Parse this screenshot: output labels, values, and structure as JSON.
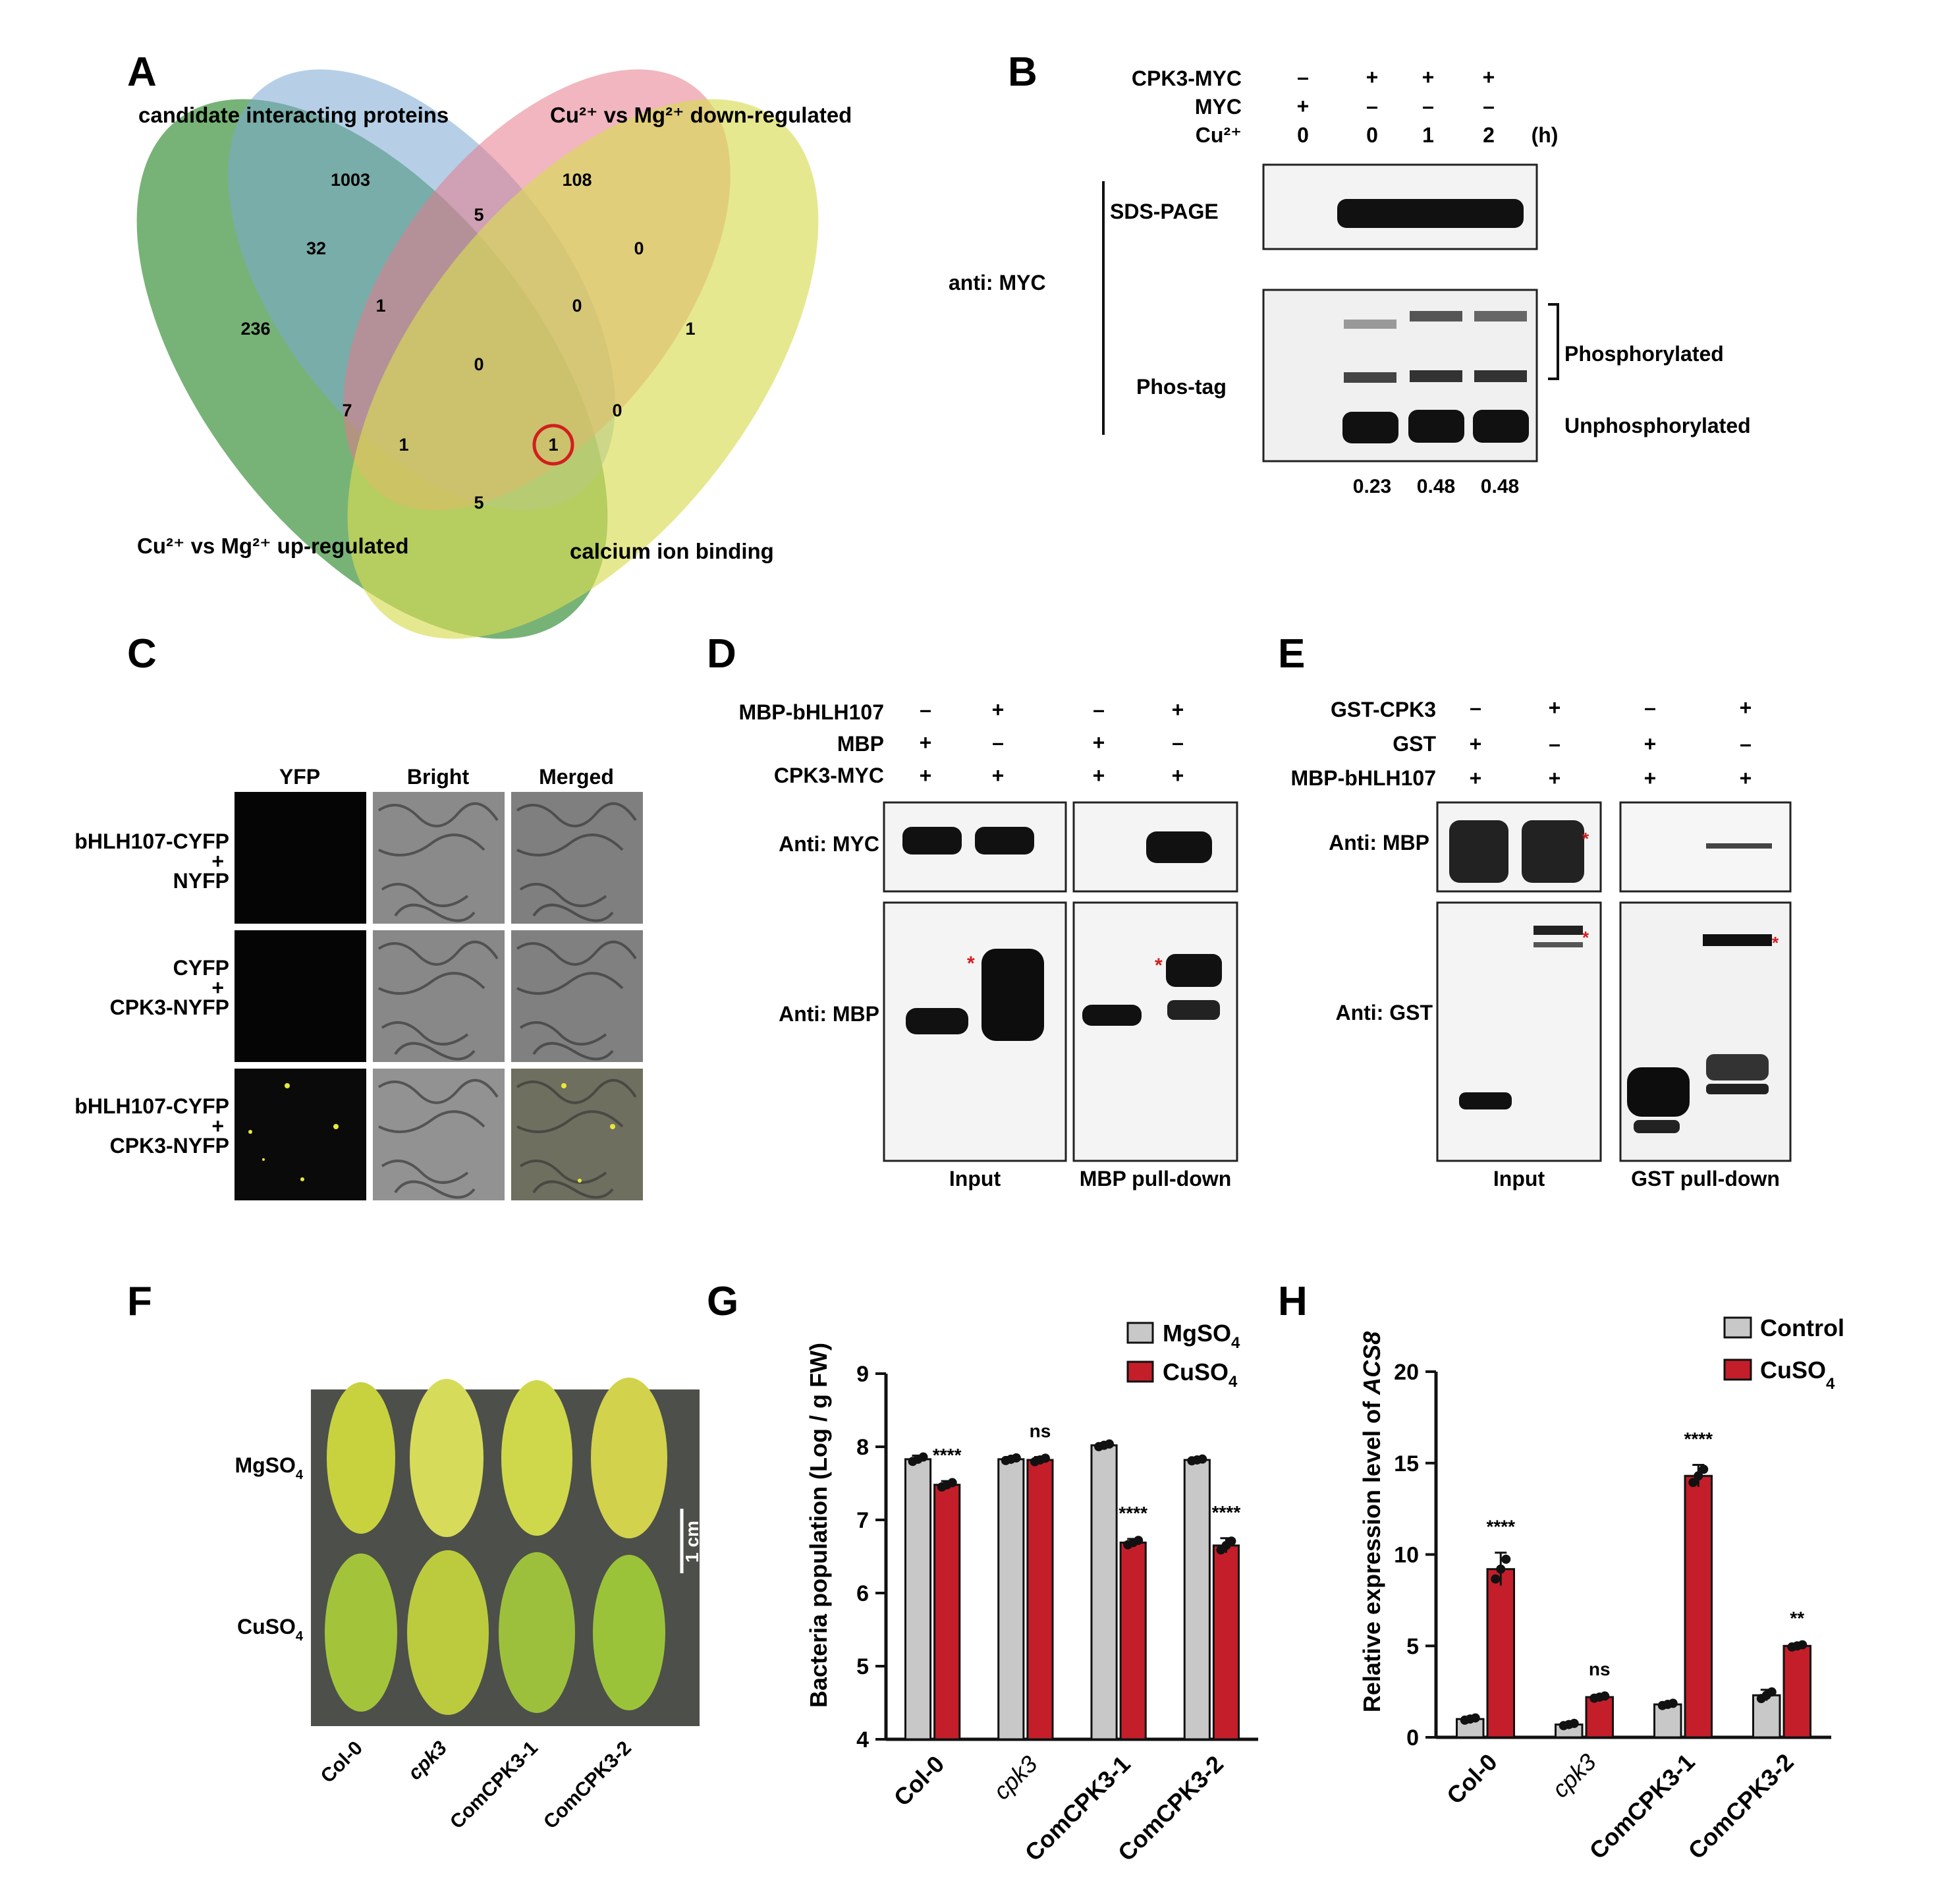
{
  "panel_letters": {
    "A": "A",
    "B": "B",
    "C": "C",
    "D": "D",
    "E": "E",
    "F": "F",
    "G": "G",
    "H": "H"
  },
  "venn": {
    "set_labels": {
      "candidate": "candidate interacting proteins",
      "down": "Cu²⁺ vs Mg²⁺ down-regulated",
      "up": "Cu²⁺ vs Mg²⁺ up-regulated",
      "calcium": "calcium ion binding"
    },
    "counts": {
      "c_only": "1003",
      "d_only": "108",
      "cd": "5",
      "cu": "32",
      "u_only": "236",
      "a_only": "1",
      "cdu": "1",
      "dca": "0",
      "da": "0",
      "cdua": "0",
      "ua": "7",
      "u_a": "1",
      "key": "1",
      "ca": "0",
      "ua_bottom": "5"
    },
    "colors": {
      "candidate": "#7aa7d4",
      "down": "#e57a8a",
      "up": "#4a9a4a",
      "calcium": "#d8dc54",
      "highlight": "#d11f1f"
    }
  },
  "panel_b": {
    "rows": [
      {
        "label": "CPK3-MYC",
        "vals": [
          "–",
          "+",
          "+",
          "+"
        ]
      },
      {
        "label": "MYC",
        "vals": [
          "+",
          "–",
          "–",
          "–"
        ]
      },
      {
        "label": "Cu²⁺",
        "vals": [
          "0",
          "0",
          "1",
          "2"
        ]
      }
    ],
    "unit": "(h)",
    "antibody": "anti: MYC",
    "sds": "SDS-PAGE",
    "phos": "Phos-tag",
    "phosphorylated": "Phosphorylated",
    "unphosphorylated": "Unphosphorylated",
    "ratios": [
      "0.23",
      "0.48",
      "0.48"
    ]
  },
  "panel_c": {
    "cols": [
      "YFP",
      "Bright",
      "Merged"
    ],
    "rows": [
      [
        "bHLH107-CYFP",
        "+",
        "NYFP"
      ],
      [
        "CYFP",
        "+",
        "CPK3-NYFP"
      ],
      [
        "bHLH107-CYFP",
        "+",
        "CPK3-NYFP"
      ]
    ]
  },
  "panel_d": {
    "rows": [
      {
        "label": "MBP-bHLH107",
        "vals": [
          "–",
          "+",
          "–",
          "+"
        ]
      },
      {
        "label": "MBP",
        "vals": [
          "+",
          "–",
          "+",
          "–"
        ]
      },
      {
        "label": "CPK3-MYC",
        "vals": [
          "+",
          "+",
          "+",
          "+"
        ]
      }
    ],
    "anti1": "Anti: MYC",
    "anti2": "Anti: MBP",
    "bottom": [
      "Input",
      "MBP pull-down"
    ],
    "star": "*"
  },
  "panel_e": {
    "rows": [
      {
        "label": "GST-CPK3",
        "vals": [
          "–",
          "+",
          "–",
          "+"
        ]
      },
      {
        "label": "GST",
        "vals": [
          "+",
          "–",
          "+",
          "–"
        ]
      },
      {
        "label": "MBP-bHLH107",
        "vals": [
          "+",
          "+",
          "+",
          "+"
        ]
      }
    ],
    "anti1": "Anti: MBP",
    "anti2": "Anti: GST",
    "bottom": [
      "Input",
      "GST pull-down"
    ],
    "star": "*"
  },
  "panel_f": {
    "row_labels": [
      "MgSO",
      "CuSO"
    ],
    "row_sub": [
      "4",
      "4"
    ],
    "scale": "1 cm",
    "genotypes": [
      "Col-0",
      "cpk3",
      "ComCPK3-1",
      "ComCPK3-2"
    ]
  },
  "chart_data": [
    {
      "type": "bar",
      "panel": "G",
      "categories": [
        "Col-0",
        "cpk3",
        "ComCPK3-1",
        "ComCPK3-2"
      ],
      "series": [
        {
          "name": "MgSO4",
          "values": [
            7.83,
            7.83,
            8.02,
            7.82
          ],
          "errors": [
            0.05,
            0.03,
            0.03,
            0.02
          ],
          "color": "#c8c8c8"
        },
        {
          "name": "CuSO4",
          "values": [
            7.48,
            7.82,
            6.69,
            6.65
          ],
          "errors": [
            0.05,
            0.04,
            0.05,
            0.1
          ],
          "color": "#c41e2a"
        }
      ],
      "significance": [
        "****",
        "ns",
        "****",
        "****"
      ],
      "ylabel": "Bacteria population (Log / g FW)",
      "ylim": [
        4,
        9
      ],
      "yticks": [
        "4",
        "5",
        "6",
        "7",
        "8",
        "9"
      ],
      "legend": [
        "MgSO",
        "CuSO"
      ],
      "legend_sub": [
        "4",
        "4"
      ]
    },
    {
      "type": "bar",
      "panel": "H",
      "categories": [
        "Col-0",
        "cpk3",
        "ComCPK3-1",
        "ComCPK3-2"
      ],
      "series": [
        {
          "name": "Control",
          "values": [
            1.0,
            0.7,
            1.8,
            2.3
          ],
          "errors": [
            0.1,
            0.1,
            0.1,
            0.3
          ],
          "color": "#c8c8c8"
        },
        {
          "name": "CuSO4",
          "values": [
            9.2,
            2.2,
            14.3,
            5.0
          ],
          "errors": [
            0.9,
            0.1,
            0.6,
            0.1
          ],
          "color": "#c41e2a"
        }
      ],
      "significance": [
        "****",
        "ns",
        "****",
        "**"
      ],
      "ylabel_prefix": "Relative expression level of ",
      "ylabel_gene": "ACS8",
      "ylim": [
        0,
        20
      ],
      "yticks": [
        "0",
        "5",
        "10",
        "15",
        "20"
      ],
      "legend": [
        "Control",
        "CuSO"
      ],
      "legend_sub": [
        "",
        "4"
      ]
    }
  ]
}
